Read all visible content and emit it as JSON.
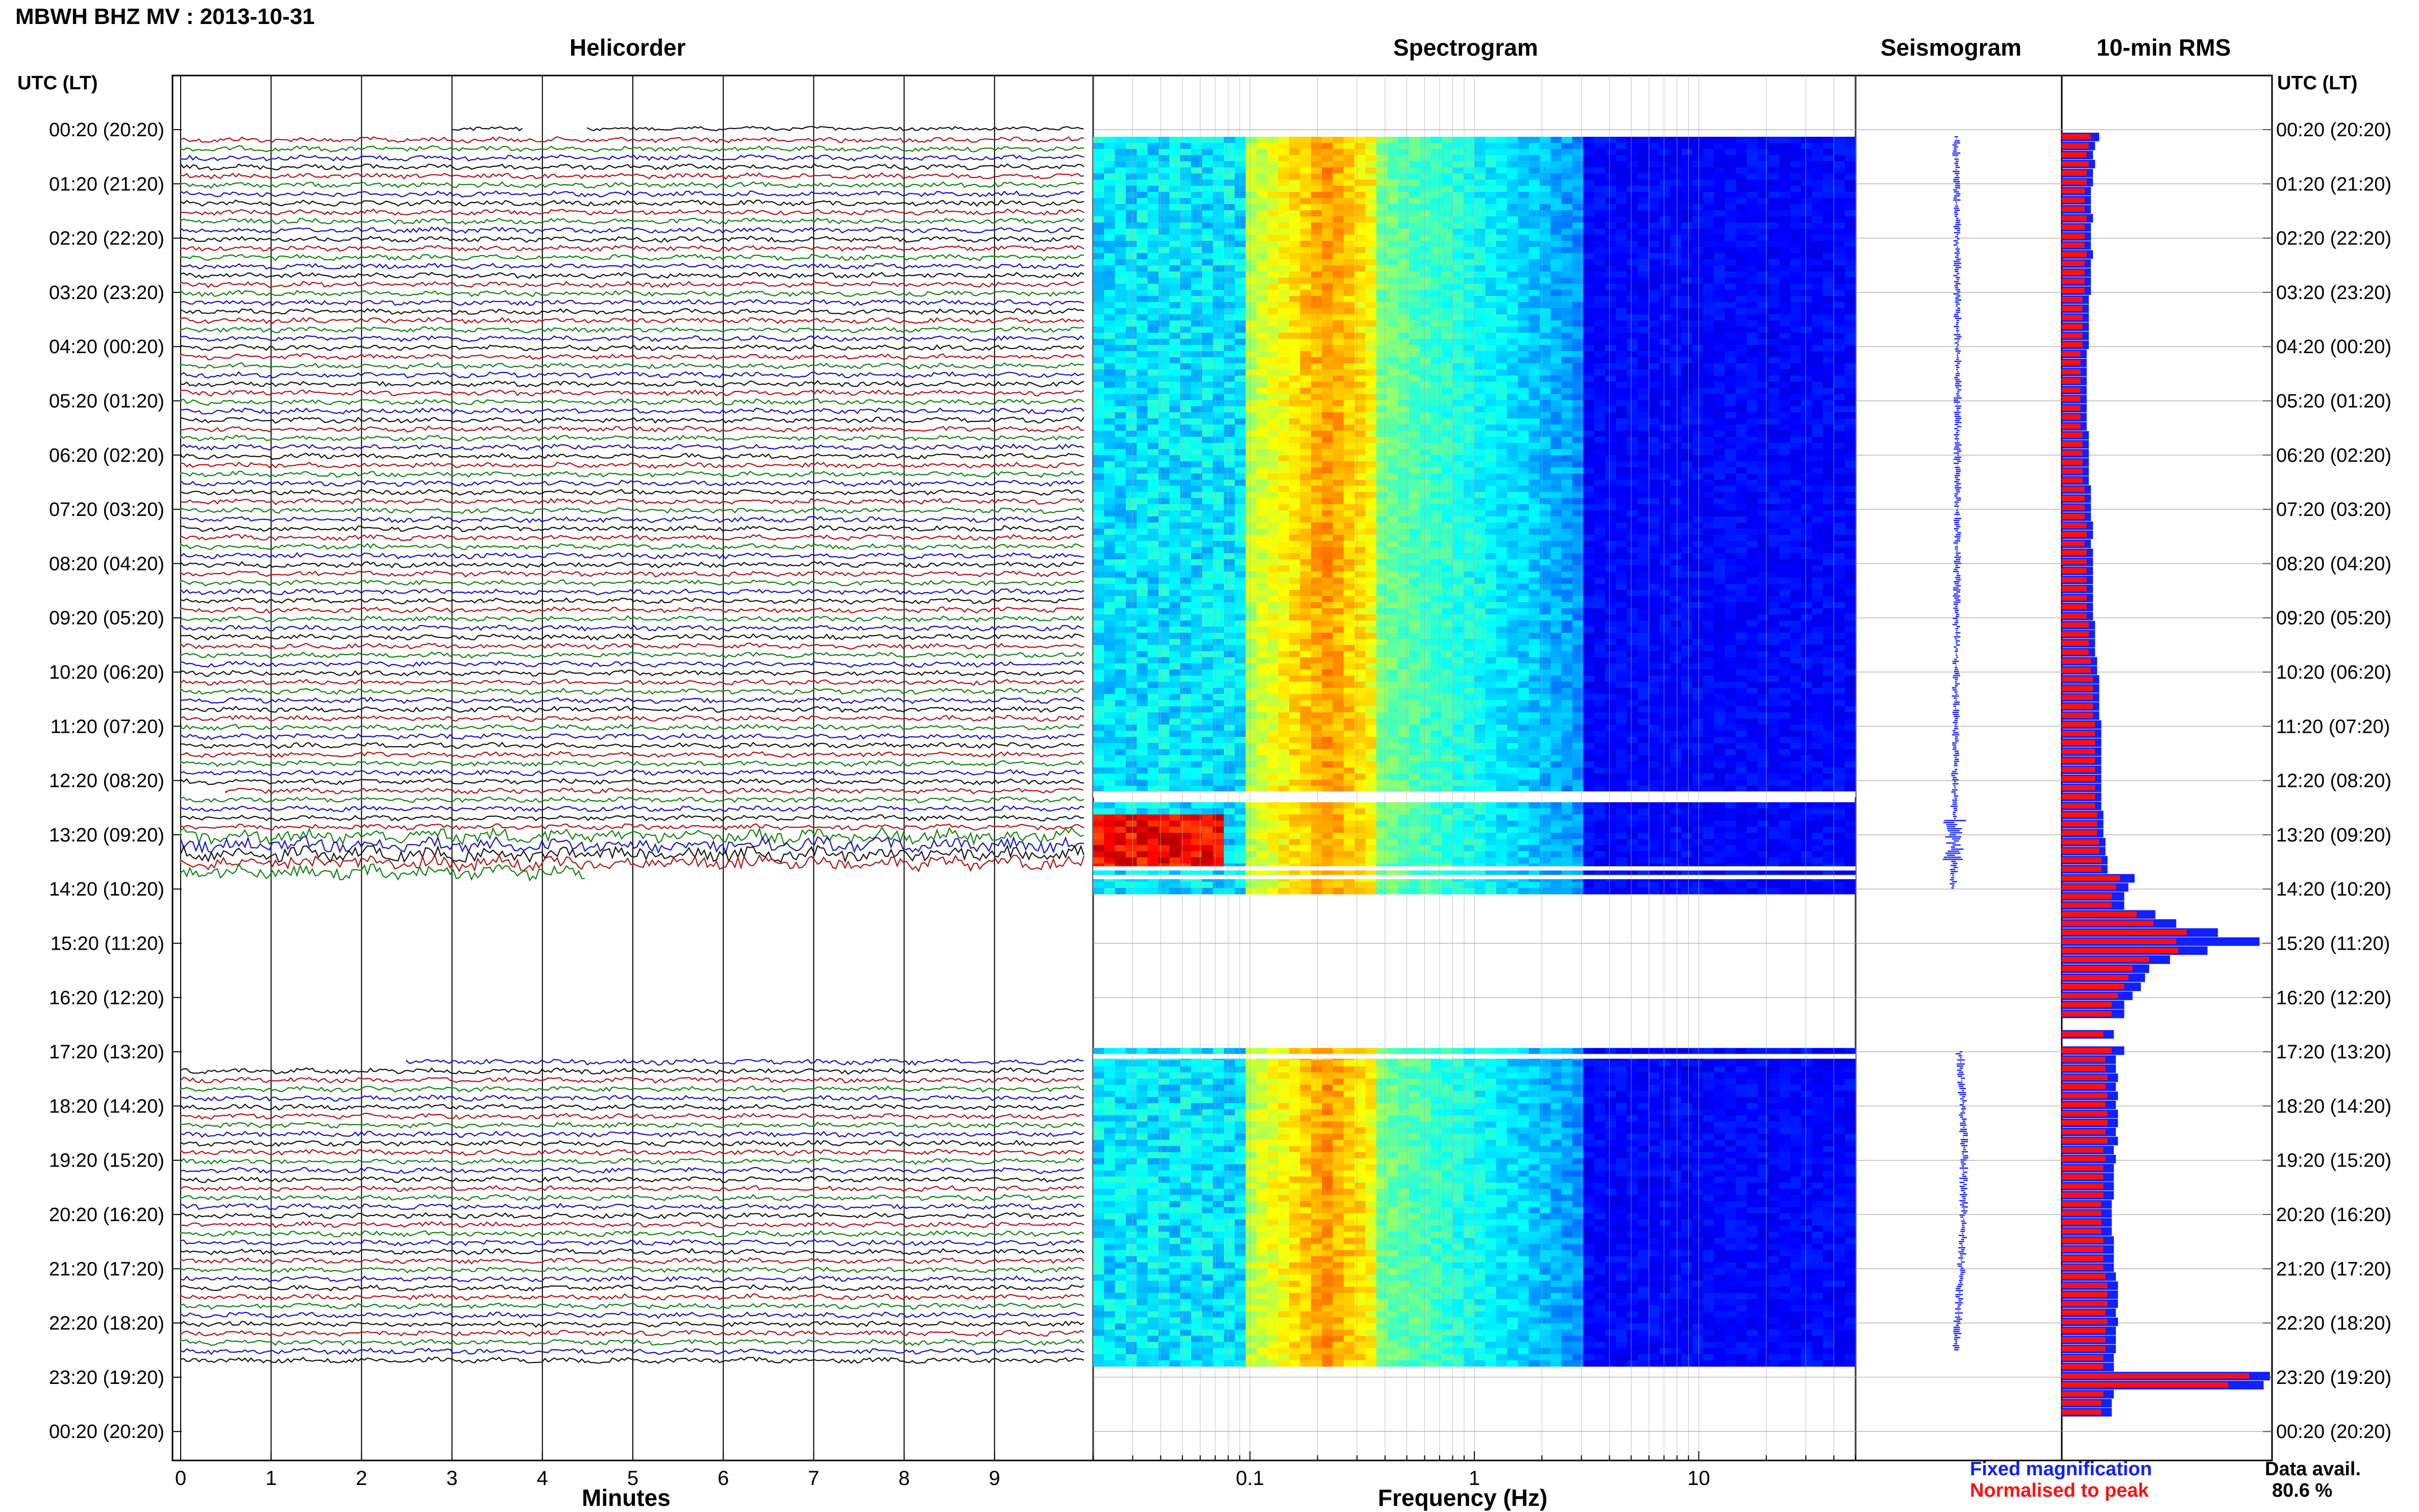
{
  "header": {
    "station_title": "MBWH BHZ MV : 2013-10-31",
    "utc_lt_label": "UTC (LT)",
    "panel_titles": {
      "helicorder": "Helicorder",
      "spectrogram": "Spectrogram",
      "seismogram": "Seismogram",
      "rms": "10-min RMS"
    }
  },
  "footer": {
    "helicorder_xlabel": "Minutes",
    "spectrogram_xlabel": "Frequency (Hz)",
    "legend_fixed": "Fixed magnification",
    "legend_normalised": "Normalised to peak",
    "data_avail_label": "Data avail.",
    "data_avail_value": "80.6 %"
  },
  "colors": {
    "fixed": "#1020ff",
    "normalised": "#ff1010",
    "trace_red": "#b01010",
    "trace_green": "#108010",
    "trace_blue": "#1010c0",
    "trace_black": "#101010"
  },
  "chart_data": [
    {
      "type": "line",
      "panel": "Helicorder",
      "title": "Helicorder",
      "xlabel": "Minutes",
      "x_ticks": [
        "0",
        "1",
        "2",
        "3",
        "4",
        "5",
        "6",
        "7",
        "8",
        "9"
      ],
      "xlim": [
        0,
        10
      ],
      "y_tick_labels": [
        "00:20 (20:20)",
        "01:20 (21:20)",
        "02:20 (22:20)",
        "03:20 (23:20)",
        "04:20 (00:20)",
        "05:20 (01:20)",
        "06:20 (02:20)",
        "07:20 (03:20)",
        "08:20 (04:20)",
        "09:20 (05:20)",
        "10:20 (06:20)",
        "11:20 (07:20)",
        "12:20 (08:20)",
        "13:20 (09:20)",
        "14:20 (10:20)",
        "15:20 (11:20)",
        "16:20 (12:20)",
        "17:20 (13:20)",
        "18:20 (14:20)",
        "19:20 (15:20)",
        "20:20 (16:20)",
        "21:20 (17:20)",
        "22:20 (18:20)",
        "23:20 (19:20)",
        "00:20 (20:20)"
      ],
      "trace_colors_cycle": [
        "red",
        "green",
        "blue",
        "black"
      ],
      "data_gaps_utc": [
        [
          "14:30",
          "17:10"
        ]
      ],
      "active_rows_start_utc": "00:20",
      "active_rows_end_utc": "23:00",
      "event_utc": "13:20"
    },
    {
      "type": "heatmap",
      "panel": "Spectrogram",
      "title": "Spectrogram",
      "xlabel": "Frequency (Hz)",
      "x_scale": "log",
      "xlim": [
        0.02,
        50
      ],
      "x_ticks": [
        "0.1",
        "1",
        "10"
      ],
      "colormap": "jet",
      "data_gaps_utc": [
        [
          "12:20",
          "12:30"
        ],
        [
          "14:30",
          "17:10"
        ],
        [
          "23:00",
          "00:20"
        ]
      ],
      "high_energy_band_hz": [
        0.15,
        0.35
      ],
      "event": {
        "utc": "13:20",
        "freq_hz": [
          0.02,
          0.08
        ]
      }
    },
    {
      "type": "line",
      "panel": "Seismogram",
      "title": "Seismogram",
      "color": "#1020ff",
      "event_utc": "13:20"
    },
    {
      "type": "bar",
      "panel": "10-min RMS",
      "title": "10-min RMS",
      "orientation": "horizontal",
      "series": [
        {
          "name": "Fixed magnification",
          "color": "#1020ff",
          "values": [
            0.18,
            0.16,
            0.15,
            0.16,
            0.15,
            0.15,
            0.14,
            0.14,
            0.14,
            0.15,
            0.14,
            0.14,
            0.14,
            0.15,
            0.14,
            0.14,
            0.14,
            0.14,
            0.13,
            0.13,
            0.13,
            0.13,
            0.13,
            0.13,
            0.12,
            0.12,
            0.12,
            0.12,
            0.12,
            0.12,
            0.12,
            0.12,
            0.12,
            0.13,
            0.13,
            0.13,
            0.13,
            0.13,
            0.13,
            0.14,
            0.14,
            0.14,
            0.14,
            0.15,
            0.15,
            0.14,
            0.15,
            0.15,
            0.15,
            0.15,
            0.15,
            0.15,
            0.15,
            0.15,
            0.16,
            0.16,
            0.16,
            0.16,
            0.17,
            0.17,
            0.18,
            0.18,
            0.18,
            0.18,
            0.18,
            0.19,
            0.19,
            0.19,
            0.19,
            0.19,
            0.19,
            0.19,
            0.19,
            0.19,
            0.19,
            0.2,
            0.2,
            0.2,
            0.21,
            0.21,
            0.22,
            0.22,
            0.35,
            0.32,
            0.3,
            0.3,
            0.45,
            0.55,
            0.75,
            0.95,
            0.7,
            0.52,
            0.42,
            0.4,
            0.38,
            0.34,
            0.3,
            0.3,
            0.25,
            0.3,
            0.26,
            0.26,
            0.27,
            0.26,
            0.27,
            0.26,
            0.27,
            0.27,
            0.26,
            0.27,
            0.25,
            0.26,
            0.25,
            0.25,
            0.25,
            0.25,
            0.24,
            0.24,
            0.24,
            0.24,
            0.25,
            0.25,
            0.25,
            0.25,
            0.26,
            0.27,
            0.27,
            0.27,
            0.26,
            0.27,
            0.26,
            0.26,
            0.26,
            0.25,
            0.25,
            0.25,
            0.25,
            0.25,
            0.24,
            0.24,
            1.0,
            0.97
          ]
        },
        {
          "name": "Normalised to peak",
          "color": "#ff1010",
          "values": [
            0.14,
            0.13,
            0.12,
            0.13,
            0.12,
            0.12,
            0.11,
            0.11,
            0.11,
            0.12,
            0.11,
            0.11,
            0.11,
            0.12,
            0.11,
            0.11,
            0.11,
            0.11,
            0.1,
            0.1,
            0.1,
            0.1,
            0.1,
            0.1,
            0.09,
            0.09,
            0.09,
            0.09,
            0.09,
            0.09,
            0.09,
            0.09,
            0.09,
            0.1,
            0.1,
            0.1,
            0.1,
            0.1,
            0.1,
            0.11,
            0.11,
            0.11,
            0.11,
            0.12,
            0.12,
            0.11,
            0.12,
            0.12,
            0.12,
            0.12,
            0.12,
            0.12,
            0.12,
            0.12,
            0.13,
            0.13,
            0.13,
            0.13,
            0.14,
            0.14,
            0.15,
            0.15,
            0.15,
            0.15,
            0.15,
            0.16,
            0.16,
            0.16,
            0.16,
            0.16,
            0.16,
            0.16,
            0.16,
            0.16,
            0.16,
            0.17,
            0.17,
            0.17,
            0.18,
            0.18,
            0.19,
            0.19,
            0.28,
            0.26,
            0.24,
            0.24,
            0.36,
            0.44,
            0.6,
            0.55,
            0.56,
            0.42,
            0.34,
            0.32,
            0.3,
            0.27,
            0.24,
            0.24,
            0.2,
            0.24,
            0.21,
            0.21,
            0.22,
            0.21,
            0.22,
            0.21,
            0.22,
            0.22,
            0.21,
            0.22,
            0.2,
            0.21,
            0.2,
            0.2,
            0.2,
            0.2,
            0.19,
            0.19,
            0.19,
            0.19,
            0.2,
            0.2,
            0.2,
            0.2,
            0.21,
            0.22,
            0.22,
            0.22,
            0.21,
            0.22,
            0.21,
            0.21,
            0.21,
            0.2,
            0.2,
            0.2,
            0.2,
            0.2,
            0.19,
            0.19,
            0.9,
            0.8
          ]
        }
      ]
    }
  ]
}
